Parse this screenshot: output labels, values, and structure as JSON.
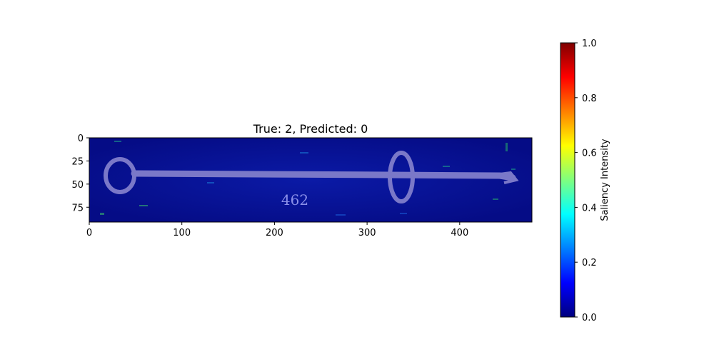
{
  "chart_data": {
    "type": "heatmap",
    "title": "True: 2, Predicted: 0",
    "xlabel": "",
    "ylabel": "",
    "x_ticks": [
      0,
      100,
      200,
      300,
      400
    ],
    "y_ticks": [
      0,
      25,
      50,
      75
    ],
    "xlim": [
      0,
      478
    ],
    "ylim": [
      91,
      0
    ],
    "grid": false,
    "image_label": "462",
    "colorbar": {
      "label": "Saliency Intensity",
      "range": [
        0,
        1
      ],
      "ticks": [
        "0.0",
        "0.2",
        "0.4",
        "0.6",
        "0.8",
        "1.0"
      ],
      "colormap": "jet",
      "colors": [
        "#00007f",
        "#0000ff",
        "#007fff",
        "#00ffff",
        "#7fff7f",
        "#ffff00",
        "#ff7f00",
        "#ff0000",
        "#7f0000"
      ]
    }
  }
}
